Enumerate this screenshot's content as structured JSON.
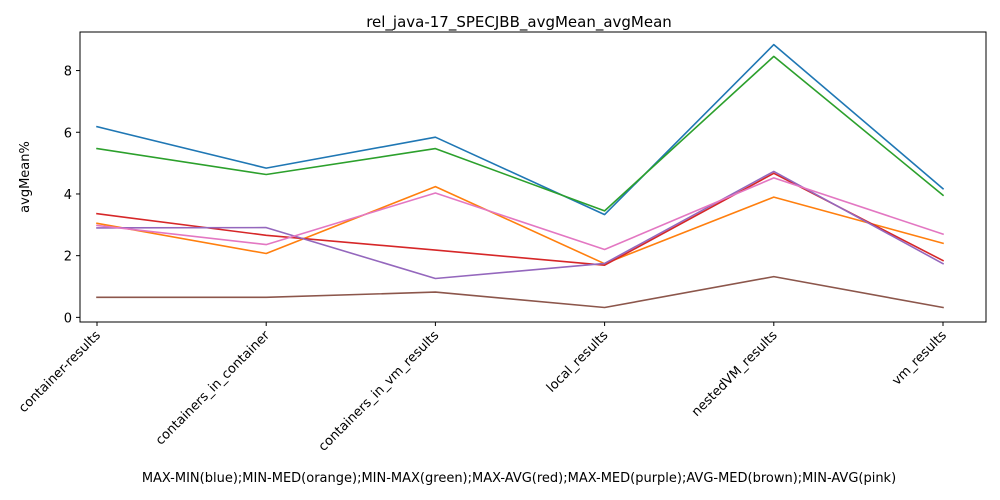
{
  "chart_data": {
    "type": "line",
    "title": "rel_java-17_SPECJBB_avgMean_avgMean",
    "xlabel": "MAX-MIN(blue);MIN-MED(orange);MIN-MAX(green);MAX-AVG(red);MAX-MED(purple);AVG-MED(brown);MIN-AVG(pink)",
    "ylabel": "avgMean%",
    "categories": [
      "container-results",
      "containers_in_container",
      "containers_in_vm_results",
      "local_results",
      "nestedVM_results",
      "vm_results"
    ],
    "ylim": [
      -0.15,
      9.25
    ],
    "yticks": [
      0,
      2,
      4,
      6,
      8
    ],
    "grid": false,
    "series": [
      {
        "name": "MAX-MIN",
        "color": "#1f77b4",
        "values": [
          6.18,
          4.84,
          5.84,
          3.33,
          8.84,
          4.17
        ]
      },
      {
        "name": "MIN-MED",
        "color": "#ff7f0e",
        "values": [
          3.05,
          2.07,
          4.24,
          1.74,
          3.9,
          2.4
        ]
      },
      {
        "name": "MIN-MAX",
        "color": "#2ca02c",
        "values": [
          5.47,
          4.63,
          5.47,
          3.45,
          8.46,
          3.96
        ]
      },
      {
        "name": "MAX-AVG",
        "color": "#d62728",
        "values": [
          3.36,
          2.66,
          2.18,
          1.69,
          4.67,
          1.84
        ]
      },
      {
        "name": "MAX-MED",
        "color": "#9467bd",
        "values": [
          2.9,
          2.91,
          1.26,
          1.75,
          4.73,
          1.74
        ]
      },
      {
        "name": "AVG-MED",
        "color": "#8c564b",
        "values": [
          0.65,
          0.65,
          0.82,
          0.32,
          1.32,
          0.32
        ]
      },
      {
        "name": "MIN-AVG",
        "color": "#e377c2",
        "values": [
          2.98,
          2.36,
          4.03,
          2.2,
          4.52,
          2.7
        ]
      }
    ]
  }
}
